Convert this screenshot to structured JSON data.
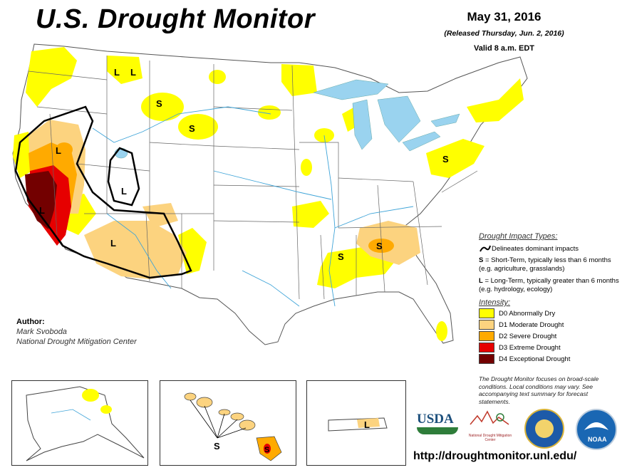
{
  "header": {
    "title": "U.S. Drought Monitor",
    "date": "May 31, 2016",
    "released": "(Released Thursday, Jun. 2, 2016)",
    "valid": "Valid 8 a.m. EDT"
  },
  "author": {
    "label": "Author:",
    "name": "Mark Svoboda",
    "org": "National Drought Mitigation Center"
  },
  "legend": {
    "impact_title": "Drought Impact Types:",
    "delineates": "Delineates dominant impacts",
    "short_term_code": "S",
    "short_term": "= Short-Term, typically less than 6 months (e.g. agriculture, grasslands)",
    "long_term_code": "L",
    "long_term": "= Long-Term, typically greater than 6 months (e.g. hydrology, ecology)",
    "intensity_title": "Intensity:",
    "levels": [
      {
        "label": "D0 Abnormally Dry",
        "color": "#ffff00"
      },
      {
        "label": "D1 Moderate Drought",
        "color": "#fcd37f"
      },
      {
        "label": "D2 Severe Drought",
        "color": "#ffaa00"
      },
      {
        "label": "D3 Extreme Drought",
        "color": "#e60000"
      },
      {
        "label": "D4 Exceptional Drought",
        "color": "#730000"
      }
    ]
  },
  "note": "The Drought Monitor focuses on broad-scale conditions. Local conditions may vary. See accompanying text summary for forecast statements.",
  "map_labels": {
    "short": "S",
    "long": "L"
  },
  "logos": {
    "usda": "USDA",
    "ndmc": "National Drought Mitigation Center",
    "noaa": "NOAA"
  },
  "url": "http://droughtmonitor.unl.edu/"
}
